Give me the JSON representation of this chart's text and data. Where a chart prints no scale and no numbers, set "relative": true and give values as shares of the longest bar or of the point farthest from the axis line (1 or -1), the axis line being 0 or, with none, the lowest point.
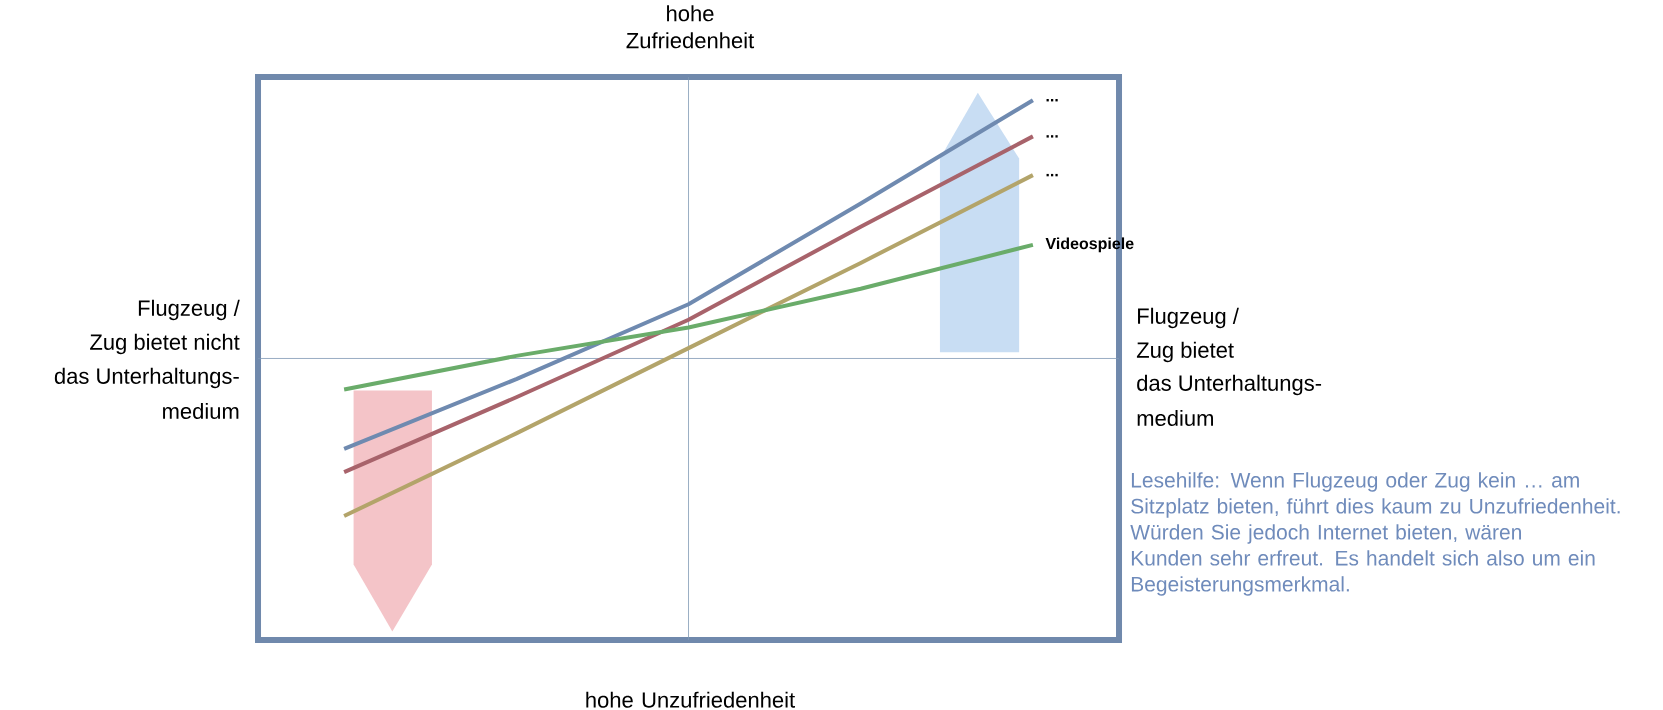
{
  "chart_data": {
    "type": "line",
    "relative": true,
    "categories": [
      null,
      null,
      null,
      null,
      null
    ],
    "series": [
      {
        "name": "...",
        "color": "#6f8ab0",
        "values": [
          -0.35,
          -0.08,
          0.21,
          0.6,
          1
        ]
      },
      {
        "name": "...",
        "color": "#a8636b",
        "values": [
          -0.44,
          -0.15,
          0.15,
          0.51,
          0.86
        ]
      },
      {
        "name": "...",
        "color": "#b3a46a",
        "values": [
          -0.61,
          -0.29,
          0.04,
          0.37,
          0.71
        ]
      },
      {
        "name": "Videospiele",
        "color": "#6aac6a",
        "values": [
          -0.12,
          0.01,
          0.12,
          0.27,
          0.44
        ]
      }
    ],
    "ref_lines": [
      {
        "axis": "y",
        "value": 0,
        "color": "#7f98b4"
      }
    ],
    "annotations": [
      "hohe Zufriedenheit",
      "hohe Unzufriedenheit",
      "Flugzeug /",
      "Zug bietet nicht",
      "das Unterhaltungs-",
      "medium",
      "Flugzeug /",
      "Zug bietet",
      "das Unterhaltungs-",
      "medium",
      "Lesehilfe: Wenn Flugzeug oder Zug kein … am Sitzplatz bieten, führt dies kaum zu Unzufriedenheit. Würden Sie jedoch Internet bieten, wären Kunden sehr erfreut. Es handelt sich also um ein Begeisterungsmerkmal."
    ]
  }
}
